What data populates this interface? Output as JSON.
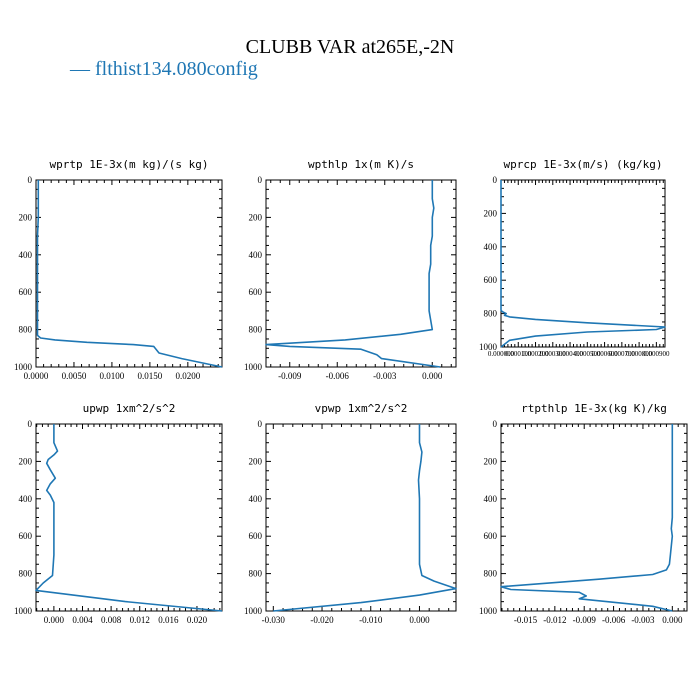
{
  "title": "CLUBB VAR at265E,-2N",
  "legend": {
    "line_symbol": "—",
    "label": "flthist134.080config",
    "color": "#1f77b4"
  },
  "chart_data": [
    {
      "type": "line",
      "title": "wprtp  1E-3x(m kg)/(s kg)",
      "xlim": [
        0.0,
        0.0245
      ],
      "ylim": [
        1000,
        0
      ],
      "xticks": [
        0.0,
        0.005,
        0.01,
        0.015,
        0.02
      ],
      "xticklabels": [
        "0.0000",
        "0.0050",
        "0.0100",
        "0.0150",
        "0.0200"
      ],
      "yticks": [
        0,
        200,
        400,
        600,
        800,
        1000
      ],
      "series": [
        {
          "color": "#1f77b4",
          "x": [
            0.0003,
            0.0003,
            0.0003,
            0.0002,
            0.0002,
            0.0002,
            0.0002,
            0.0002,
            0.0002,
            0.0002,
            0.0002,
            0.0002,
            0.0002,
            0.0003,
            0.0006,
            0.0025,
            0.0067,
            0.0128,
            0.0155,
            0.0162,
            0.0192,
            0.0245
          ],
          "y": [
            0,
            100,
            200,
            300,
            400,
            500,
            600,
            700,
            780,
            800,
            820,
            825,
            830,
            835,
            845,
            855,
            868,
            880,
            890,
            925,
            955,
            1000
          ]
        }
      ]
    },
    {
      "type": "line",
      "title": "wpthlp  1x(m K)/s",
      "xlim": [
        -0.0105,
        0.0015
      ],
      "ylim": [
        1000,
        0
      ],
      "xticks": [
        -0.009,
        -0.006,
        -0.003,
        0.0
      ],
      "xticklabels": [
        "-0.009",
        "-0.006",
        "-0.003",
        "0.000"
      ],
      "yticks": [
        0,
        200,
        400,
        600,
        800,
        1000
      ],
      "series": [
        {
          "color": "#1f77b4",
          "x": [
            0.0,
            0.0,
            0.0001,
            0.0,
            0.0,
            -0.0001,
            -0.0001,
            -0.0001,
            -0.0002,
            -0.0002,
            -0.0002,
            -0.0002,
            -0.0002,
            -0.0001,
            0.0,
            -0.002,
            -0.0055,
            -0.0105,
            -0.009,
            -0.0045,
            -0.0035,
            -0.0032,
            0.0005
          ],
          "y": [
            0,
            100,
            150,
            200,
            300,
            350,
            400,
            450,
            500,
            550,
            600,
            650,
            700,
            750,
            800,
            825,
            855,
            880,
            890,
            905,
            935,
            955,
            1000
          ]
        }
      ]
    },
    {
      "type": "line",
      "title": "wprcp  1E-3x(m/s) (kg/kg)",
      "xlim": [
        0.0,
        0.00095
      ],
      "ylim": [
        1000,
        0
      ],
      "xticks": [
        0.0,
        0.0001,
        0.0002,
        0.0003,
        0.0004,
        0.0005,
        0.0006,
        0.0007,
        0.0008,
        0.0009
      ],
      "xticklabels": [
        "0.000000",
        "0.000100",
        "0.000200",
        "0.000300",
        "0.000400",
        "0.000500",
        "0.000600",
        "0.000700",
        "0.000800",
        "0.000900"
      ],
      "yticks": [
        0,
        200,
        400,
        600,
        800,
        1000
      ],
      "series": [
        {
          "color": "#1f77b4",
          "x": [
            0.0,
            0.0,
            0.0,
            0.0,
            0.0,
            0.0,
            0.0,
            1e-05,
            3e-05,
            2e-05,
            5e-05,
            0.0002,
            0.0005,
            0.00095,
            0.0009,
            0.0005,
            0.0002,
            5e-05,
            0.0
          ],
          "y": [
            0,
            200,
            400,
            600,
            700,
            760,
            780,
            790,
            800,
            810,
            820,
            835,
            855,
            880,
            895,
            910,
            935,
            960,
            1000
          ]
        }
      ]
    },
    {
      "type": "line",
      "title": "upwp  1xm^2/s^2",
      "xlim": [
        -0.0025,
        0.0235
      ],
      "ylim": [
        1000,
        0
      ],
      "xticks": [
        0.0,
        0.004,
        0.008,
        0.012,
        0.016,
        0.02
      ],
      "xticklabels": [
        "0.000",
        "0.004",
        "0.008",
        "0.012",
        "0.016",
        "0.020"
      ],
      "yticks": [
        0,
        200,
        400,
        600,
        800,
        1000
      ],
      "series": [
        {
          "color": "#1f77b4",
          "x": [
            0.0,
            0.0,
            0.0005,
            0.0,
            -0.0008,
            -0.001,
            -0.0005,
            0.0002,
            -0.0005,
            -0.001,
            -0.0005,
            0.0,
            0.0,
            0.0,
            0.0,
            -0.0002,
            -0.0015,
            -0.0025,
            0.01,
            0.0235
          ],
          "y": [
            0,
            100,
            145,
            165,
            190,
            210,
            245,
            290,
            320,
            355,
            380,
            420,
            500,
            600,
            700,
            810,
            850,
            890,
            950,
            1000
          ]
        }
      ]
    },
    {
      "type": "line",
      "title": "vpwp  1xm^2/s^2",
      "xlim": [
        -0.0315,
        0.0075
      ],
      "ylim": [
        1000,
        0
      ],
      "xticks": [
        -0.03,
        -0.02,
        -0.01,
        0.0
      ],
      "xticklabels": [
        "-0.030",
        "-0.020",
        "-0.010",
        "0.000"
      ],
      "yticks": [
        0,
        200,
        400,
        600,
        800,
        1000
      ],
      "series": [
        {
          "color": "#1f77b4",
          "x": [
            0.0,
            0.0,
            0.0005,
            0.0003,
            0.0,
            -0.0002,
            0.0,
            0.0,
            0.0,
            0.0,
            0.0005,
            0.003,
            0.0075,
            0.0,
            -0.012,
            -0.03
          ],
          "y": [
            0,
            100,
            150,
            200,
            250,
            300,
            400,
            500,
            600,
            750,
            810,
            840,
            880,
            915,
            955,
            1000
          ]
        }
      ]
    },
    {
      "type": "line",
      "title": "rtpthlp  1E-3x(kg K)/kg",
      "xlim": [
        -0.0175,
        0.0015
      ],
      "ylim": [
        1000,
        0
      ],
      "xticks": [
        -0.015,
        -0.012,
        -0.009,
        -0.006,
        -0.003,
        0.0
      ],
      "xticklabels": [
        "-0.015",
        "-0.012",
        "-0.009",
        "-0.006",
        "-0.003",
        "0.000"
      ],
      "yticks": [
        0,
        200,
        400,
        600,
        800,
        1000
      ],
      "series": [
        {
          "color": "#1f77b4",
          "x": [
            0.0,
            0.0,
            0.0,
            0.0,
            -0.0001,
            0.0,
            -0.0002,
            -0.0003,
            -0.0006,
            -0.002,
            -0.0075,
            -0.0175,
            -0.0165,
            -0.0095,
            -0.0088,
            -0.0095,
            -0.002,
            0.0
          ],
          "y": [
            0,
            200,
            400,
            500,
            560,
            600,
            700,
            750,
            780,
            805,
            830,
            870,
            885,
            900,
            920,
            935,
            975,
            1000
          ]
        }
      ]
    }
  ]
}
